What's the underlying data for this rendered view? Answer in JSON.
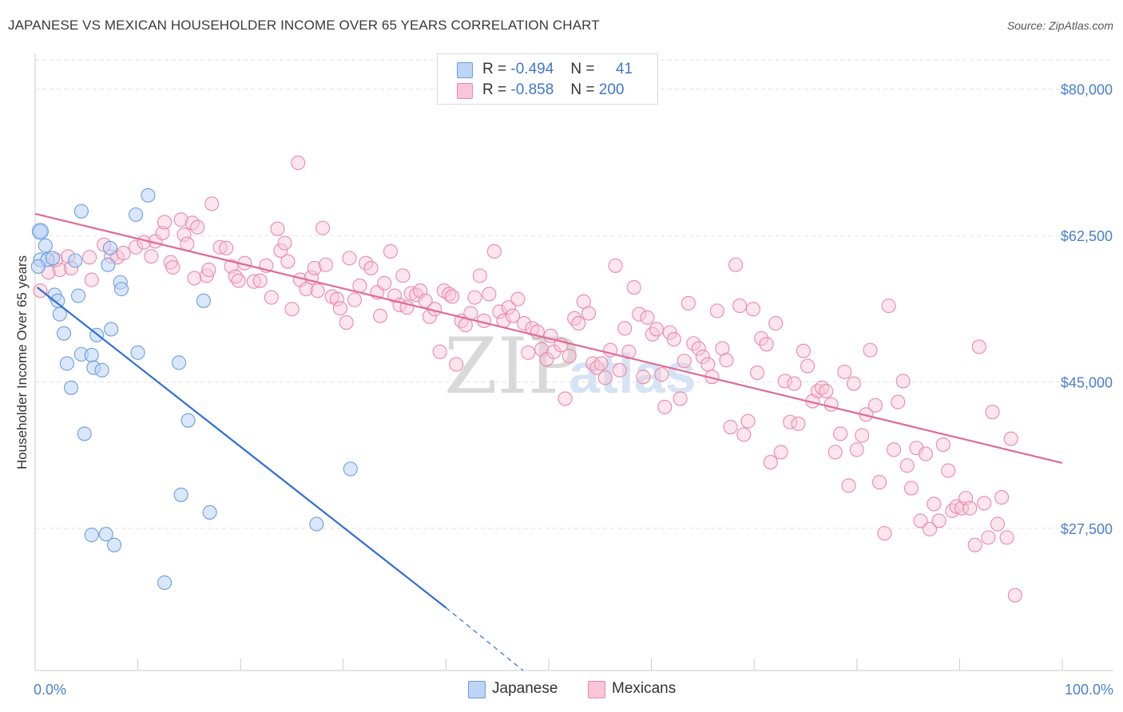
{
  "header": {
    "title": "JAPANESE VS MEXICAN HOUSEHOLDER INCOME OVER 65 YEARS CORRELATION CHART",
    "source": "Source: ZipAtlas.com"
  },
  "legend": {
    "rows": [
      {
        "r_label": "R =",
        "r_value": "-0.494",
        "n_label": "N =",
        "n_value": "41"
      },
      {
        "r_label": "R =",
        "r_value": "-0.858",
        "n_label": "N =",
        "n_value": "200"
      }
    ]
  },
  "watermark": {
    "zip": "ZIP",
    "atlas": "atlas"
  },
  "colors": {
    "japanese_fill": "#bcd4f5",
    "japanese_stroke": "#6b9ee0",
    "japanese_line": "#2f6fd6",
    "mexican_fill": "#f8c6d6",
    "mexican_stroke": "#e989aa",
    "mexican_line": "#e06a97",
    "grid": "#e3e3e3",
    "tick_text": "#4a7fd0"
  },
  "chart_data": {
    "type": "scatter",
    "title": "JAPANESE VS MEXICAN HOUSEHOLDER INCOME OVER 65 YEARS CORRELATION CHART",
    "xlabel": "",
    "ylabel": "Householder Income Over 65 years",
    "xlim": [
      0,
      100
    ],
    "ylim": [
      10500,
      83500
    ],
    "x_tick_labels": [
      "0.0%",
      "100.0%"
    ],
    "y_ticks": [
      27500,
      45000,
      62500,
      80000
    ],
    "y_tick_labels": [
      "$27,500",
      "$45,000",
      "$62,500",
      "$80,000"
    ],
    "grid": true,
    "legend_position": "top-center",
    "series": [
      {
        "name": "Japanese",
        "r": -0.494,
        "n": 41,
        "trend": {
          "x": [
            0.2,
            40
          ],
          "y": [
            56300,
            18000
          ],
          "dashed_to": [
            47.5,
            10500
          ]
        },
        "points": [
          [
            0.5,
            63000
          ],
          [
            1.0,
            61300
          ],
          [
            0.5,
            59600
          ],
          [
            1.2,
            59600
          ],
          [
            1.7,
            59800
          ],
          [
            0.3,
            58800
          ],
          [
            3.9,
            59500
          ],
          [
            7.3,
            61000
          ],
          [
            7.1,
            59000
          ],
          [
            1.9,
            55400
          ],
          [
            2.2,
            54700
          ],
          [
            4.2,
            55300
          ],
          [
            8.3,
            56900
          ],
          [
            8.4,
            56100
          ],
          [
            2.4,
            53100
          ],
          [
            9.8,
            65000
          ],
          [
            11.0,
            67300
          ],
          [
            4.5,
            65400
          ],
          [
            16.4,
            54700
          ],
          [
            2.8,
            50800
          ],
          [
            7.4,
            51300
          ],
          [
            6.0,
            50600
          ],
          [
            3.1,
            47200
          ],
          [
            4.5,
            48300
          ],
          [
            5.5,
            48200
          ],
          [
            10.0,
            48500
          ],
          [
            5.7,
            46700
          ],
          [
            6.5,
            46400
          ],
          [
            3.5,
            44300
          ],
          [
            14.0,
            47300
          ],
          [
            14.9,
            40400
          ],
          [
            4.8,
            38800
          ],
          [
            30.7,
            34600
          ],
          [
            14.2,
            31500
          ],
          [
            17.0,
            29400
          ],
          [
            27.4,
            28000
          ],
          [
            5.5,
            26700
          ],
          [
            6.9,
            26800
          ],
          [
            7.7,
            25500
          ],
          [
            12.6,
            21000
          ]
        ]
      },
      {
        "name": "Mexicans",
        "r": -0.858,
        "n": 200,
        "trend": {
          "x": [
            0,
            100
          ],
          "y": [
            65100,
            35300
          ]
        },
        "points": [
          [
            0.5,
            55900
          ],
          [
            1.3,
            58100
          ],
          [
            2.4,
            58400
          ],
          [
            2.0,
            59600
          ],
          [
            3.2,
            60000
          ],
          [
            3.5,
            58600
          ],
          [
            5.3,
            59900
          ],
          [
            5.5,
            57200
          ],
          [
            6.7,
            61400
          ],
          [
            7.4,
            60000
          ],
          [
            8.0,
            59900
          ],
          [
            8.6,
            60400
          ],
          [
            9.8,
            61100
          ],
          [
            10.6,
            61700
          ],
          [
            11.3,
            60000
          ],
          [
            11.7,
            61800
          ],
          [
            12.4,
            62800
          ],
          [
            12.6,
            64100
          ],
          [
            13.2,
            59300
          ],
          [
            13.4,
            58700
          ],
          [
            14.2,
            64400
          ],
          [
            14.5,
            62600
          ],
          [
            14.8,
            61500
          ],
          [
            15.3,
            64000
          ],
          [
            15.5,
            57400
          ],
          [
            15.8,
            63500
          ],
          [
            16.7,
            57700
          ],
          [
            16.9,
            58400
          ],
          [
            17.2,
            66300
          ],
          [
            18.0,
            61100
          ],
          [
            18.6,
            61000
          ],
          [
            19.1,
            58800
          ],
          [
            19.5,
            57600
          ],
          [
            19.8,
            57100
          ],
          [
            20.4,
            59200
          ],
          [
            21.3,
            57000
          ],
          [
            21.9,
            57100
          ],
          [
            22.5,
            58900
          ],
          [
            23.0,
            55100
          ],
          [
            23.6,
            63300
          ],
          [
            23.9,
            60700
          ],
          [
            24.3,
            61600
          ],
          [
            24.6,
            59400
          ],
          [
            25.0,
            53700
          ],
          [
            25.8,
            57200
          ],
          [
            25.6,
            71200
          ],
          [
            26.4,
            56100
          ],
          [
            26.9,
            57500
          ],
          [
            27.2,
            58600
          ],
          [
            27.5,
            55900
          ],
          [
            28.0,
            63400
          ],
          [
            28.3,
            59000
          ],
          [
            28.9,
            55200
          ],
          [
            29.4,
            54900
          ],
          [
            29.7,
            53800
          ],
          [
            30.3,
            52100
          ],
          [
            30.6,
            59800
          ],
          [
            31.1,
            54800
          ],
          [
            31.6,
            56500
          ],
          [
            32.2,
            59200
          ],
          [
            32.7,
            58600
          ],
          [
            33.3,
            55700
          ],
          [
            33.6,
            52900
          ],
          [
            34.0,
            56800
          ],
          [
            34.6,
            60600
          ],
          [
            35.0,
            55300
          ],
          [
            35.5,
            54200
          ],
          [
            35.8,
            57700
          ],
          [
            36.2,
            53900
          ],
          [
            36.6,
            55600
          ],
          [
            37.1,
            55400
          ],
          [
            37.5,
            55900
          ],
          [
            38.0,
            54700
          ],
          [
            38.4,
            52800
          ],
          [
            38.9,
            53700
          ],
          [
            39.4,
            48600
          ],
          [
            39.8,
            55900
          ],
          [
            40.3,
            55500
          ],
          [
            40.6,
            55200
          ],
          [
            41.0,
            47100
          ],
          [
            41.5,
            52300
          ],
          [
            41.9,
            51800
          ],
          [
            42.4,
            53200
          ],
          [
            42.8,
            55100
          ],
          [
            43.3,
            57700
          ],
          [
            43.7,
            52300
          ],
          [
            44.2,
            55500
          ],
          [
            44.7,
            60600
          ],
          [
            45.2,
            53400
          ],
          [
            45.6,
            52300
          ],
          [
            46.1,
            53900
          ],
          [
            46.5,
            52900
          ],
          [
            47.0,
            54900
          ],
          [
            47.6,
            52000
          ],
          [
            48.0,
            48500
          ],
          [
            48.4,
            51400
          ],
          [
            48.9,
            51000
          ],
          [
            49.3,
            48900
          ],
          [
            49.8,
            47700
          ],
          [
            50.2,
            50500
          ],
          [
            50.5,
            48600
          ],
          [
            51.2,
            49400
          ],
          [
            51.6,
            43000
          ],
          [
            52.0,
            48100
          ],
          [
            52.5,
            52600
          ],
          [
            52.9,
            52000
          ],
          [
            53.4,
            54600
          ],
          [
            53.9,
            53200
          ],
          [
            54.3,
            47200
          ],
          [
            54.7,
            46700
          ],
          [
            55.1,
            47200
          ],
          [
            55.5,
            45500
          ],
          [
            56.0,
            48800
          ],
          [
            56.5,
            58900
          ],
          [
            56.9,
            46400
          ],
          [
            57.4,
            51400
          ],
          [
            57.8,
            48600
          ],
          [
            58.3,
            56300
          ],
          [
            58.8,
            53100
          ],
          [
            59.2,
            45600
          ],
          [
            59.6,
            52700
          ],
          [
            60.1,
            50700
          ],
          [
            60.5,
            51300
          ],
          [
            61.0,
            45900
          ],
          [
            61.3,
            42000
          ],
          [
            61.8,
            50900
          ],
          [
            62.2,
            50100
          ],
          [
            62.8,
            43000
          ],
          [
            63.2,
            47500
          ],
          [
            63.6,
            54400
          ],
          [
            64.1,
            49600
          ],
          [
            64.6,
            49000
          ],
          [
            65.0,
            48000
          ],
          [
            65.5,
            47100
          ],
          [
            65.9,
            45600
          ],
          [
            66.4,
            53500
          ],
          [
            66.9,
            49000
          ],
          [
            67.3,
            47600
          ],
          [
            67.7,
            39600
          ],
          [
            68.2,
            59000
          ],
          [
            68.6,
            54100
          ],
          [
            69.0,
            38700
          ],
          [
            69.4,
            40300
          ],
          [
            69.9,
            53700
          ],
          [
            70.3,
            46100
          ],
          [
            70.7,
            50200
          ],
          [
            71.2,
            49500
          ],
          [
            71.6,
            35400
          ],
          [
            72.1,
            52000
          ],
          [
            72.6,
            36600
          ],
          [
            73.0,
            45100
          ],
          [
            73.5,
            40200
          ],
          [
            73.9,
            44800
          ],
          [
            74.3,
            40000
          ],
          [
            74.8,
            48700
          ],
          [
            75.2,
            46900
          ],
          [
            75.7,
            42700
          ],
          [
            76.2,
            43900
          ],
          [
            76.6,
            44300
          ],
          [
            77.0,
            43900
          ],
          [
            77.5,
            42300
          ],
          [
            77.9,
            36600
          ],
          [
            78.4,
            38800
          ],
          [
            78.8,
            46200
          ],
          [
            79.2,
            32600
          ],
          [
            79.7,
            44800
          ],
          [
            80.0,
            36900
          ],
          [
            80.5,
            38600
          ],
          [
            80.9,
            41100
          ],
          [
            81.3,
            48800
          ],
          [
            81.8,
            42200
          ],
          [
            82.2,
            33000
          ],
          [
            82.7,
            26900
          ],
          [
            83.1,
            54100
          ],
          [
            83.6,
            36900
          ],
          [
            84.0,
            42600
          ],
          [
            84.5,
            45100
          ],
          [
            84.9,
            35000
          ],
          [
            85.3,
            32300
          ],
          [
            85.8,
            37100
          ],
          [
            86.2,
            28400
          ],
          [
            86.7,
            36400
          ],
          [
            87.1,
            27400
          ],
          [
            87.5,
            30400
          ],
          [
            88.0,
            28400
          ],
          [
            88.4,
            37500
          ],
          [
            88.9,
            34400
          ],
          [
            89.3,
            29600
          ],
          [
            89.7,
            30100
          ],
          [
            90.2,
            29900
          ],
          [
            90.6,
            31100
          ],
          [
            91.0,
            29900
          ],
          [
            91.5,
            25500
          ],
          [
            91.9,
            49200
          ],
          [
            92.4,
            30500
          ],
          [
            92.8,
            26400
          ],
          [
            93.2,
            41400
          ],
          [
            93.7,
            28000
          ],
          [
            94.1,
            31200
          ],
          [
            94.6,
            26400
          ],
          [
            95.0,
            38200
          ],
          [
            95.4,
            19500
          ]
        ]
      }
    ]
  },
  "bottom_legend": {
    "items": [
      "Japanese",
      "Mexicans"
    ]
  }
}
